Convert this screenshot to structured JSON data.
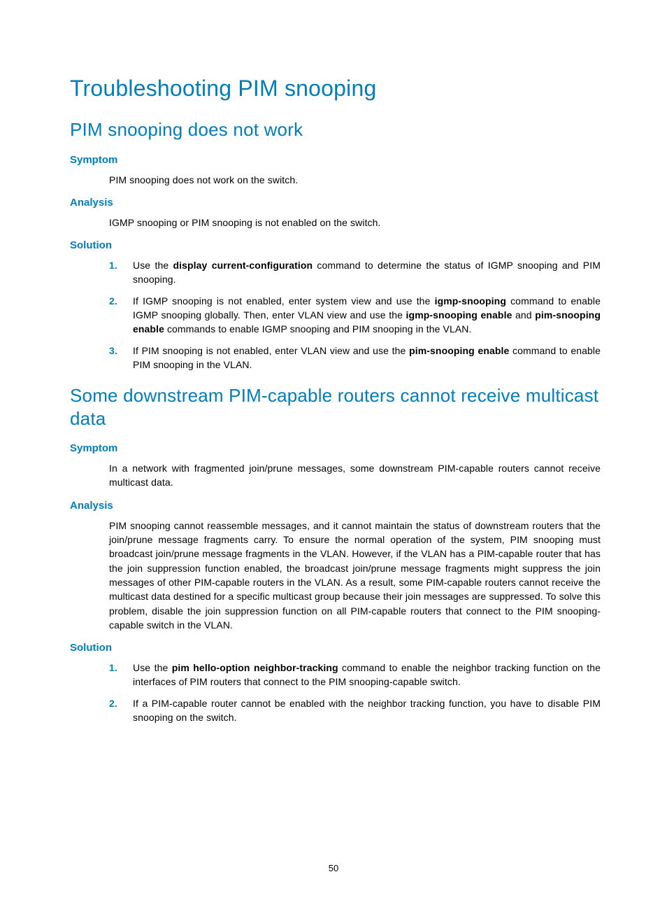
{
  "title": "Troubleshooting PIM snooping",
  "pageNumber": "50",
  "colors": {
    "accent": "#007dba",
    "text": "#000000",
    "background": "#ffffff"
  },
  "section1": {
    "heading": "PIM snooping does not work",
    "symptom": {
      "label": "Symptom",
      "text": "PIM snooping does not work on the switch."
    },
    "analysis": {
      "label": "Analysis",
      "text": "IGMP snooping or PIM snooping is not enabled on the switch."
    },
    "solution": {
      "label": "Solution",
      "items": {
        "1": {
          "num": "1.",
          "pre": "Use the ",
          "cmd": "display current-configuration",
          "post": " command to determine the status of IGMP snooping and PIM snooping."
        },
        "2": {
          "num": "2.",
          "pre": "If IGMP snooping is not enabled, enter system view and use the ",
          "cmd1": "igmp-snooping",
          "mid1": " command to enable IGMP snooping globally. Then, enter VLAN view and use the ",
          "cmd2": "igmp-snooping enable",
          "mid2": " and ",
          "cmd3": "pim-snooping enable",
          "post": " commands to enable IGMP snooping and PIM snooping in the VLAN."
        },
        "3": {
          "num": "3.",
          "pre": "If PIM snooping is not enabled, enter VLAN view and use the ",
          "cmd": "pim-snooping enable",
          "post": " command to enable PIM snooping in the VLAN."
        }
      }
    }
  },
  "section2": {
    "heading": "Some downstream PIM-capable routers cannot receive multicast data",
    "symptom": {
      "label": "Symptom",
      "text": "In a network with fragmented join/prune messages, some downstream PIM-capable routers cannot receive multicast data."
    },
    "analysis": {
      "label": "Analysis",
      "text": "PIM snooping cannot reassemble messages, and it cannot maintain the status of downstream routers that the join/prune message fragments carry. To ensure the normal operation of the system, PIM snooping must broadcast join/prune message fragments in the VLAN. However, if the VLAN has a PIM-capable router that has the join suppression function enabled, the broadcast join/prune message fragments might suppress the join messages of other PIM-capable routers in the VLAN. As a result, some PIM-capable routers cannot receive the multicast data destined for a specific multicast group because their join messages are suppressed. To solve this problem, disable the join suppression function on all PIM-capable routers that connect to the PIM snooping-capable switch in the VLAN."
    },
    "solution": {
      "label": "Solution",
      "items": {
        "1": {
          "num": "1.",
          "pre": "Use the ",
          "cmd": "pim hello-option neighbor-tracking",
          "post": " command to enable the neighbor tracking function on the interfaces of PIM routers that connect to the PIM snooping-capable switch."
        },
        "2": {
          "num": "2.",
          "text": "If a PIM-capable router cannot be enabled with the neighbor tracking function, you have to disable PIM snooping on the switch."
        }
      }
    }
  }
}
